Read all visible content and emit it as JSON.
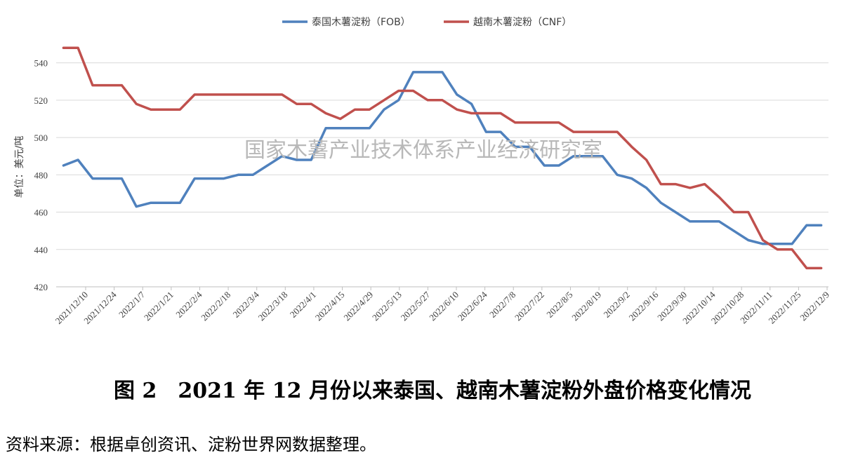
{
  "chart_data": {
    "type": "line",
    "ylabel": "单位：美元/吨",
    "ylim": [
      420,
      550
    ],
    "yticks": [
      420,
      440,
      460,
      480,
      500,
      520,
      540
    ],
    "x_labels": [
      "2021/12/10",
      "2021/12/24",
      "2022/1/7",
      "2022/1/21",
      "2022/2/4",
      "2022/2/18",
      "2022/3/4",
      "2022/3/18",
      "2022/4/1",
      "2022/4/15",
      "2022/4/29",
      "2022/5/13",
      "2022/5/27",
      "2022/6/10",
      "2022/6/24",
      "2022/7/8",
      "2022/7/22",
      "2022/8/5",
      "2022/8/19",
      "2022/9/2",
      "2022/9/16",
      "2022/9/30",
      "2022/10/14",
      "2022/10/28",
      "2022/11/11",
      "2022/11/25",
      "2022/12/9"
    ],
    "grid": true,
    "legend_position": "top-center",
    "series": [
      {
        "name": "泰国木薯淀粉（FOB）",
        "color": "#4f81bd",
        "values": [
          485,
          488,
          478,
          478,
          478,
          463,
          465,
          465,
          465,
          478,
          478,
          478,
          480,
          480,
          485,
          490,
          488,
          488,
          505,
          505,
          505,
          505,
          515,
          520,
          535,
          535,
          535,
          523,
          518,
          503,
          503,
          495,
          495,
          485,
          485,
          490,
          490,
          490,
          480,
          478,
          473,
          465,
          460,
          455,
          455,
          455,
          450,
          445,
          443,
          443,
          443,
          453,
          453
        ]
      },
      {
        "name": "越南木薯淀粉（CNF）",
        "color": "#c0504d",
        "values": [
          548,
          548,
          528,
          528,
          528,
          518,
          515,
          515,
          515,
          523,
          523,
          523,
          523,
          523,
          523,
          523,
          518,
          518,
          513,
          510,
          515,
          515,
          520,
          525,
          525,
          520,
          520,
          515,
          513,
          513,
          513,
          508,
          508,
          508,
          508,
          503,
          503,
          503,
          503,
          495,
          488,
          475,
          475,
          473,
          475,
          468,
          460,
          460,
          445,
          440,
          440,
          430,
          430
        ]
      }
    ],
    "watermark": "国家木薯产业技术体系产业经济研究室"
  },
  "caption": "图 2　2021 年 12 月份以来泰国、越南木薯淀粉外盘价格变化情况",
  "source": "资料来源：根据卓创资讯、淀粉世界网数据整理。"
}
